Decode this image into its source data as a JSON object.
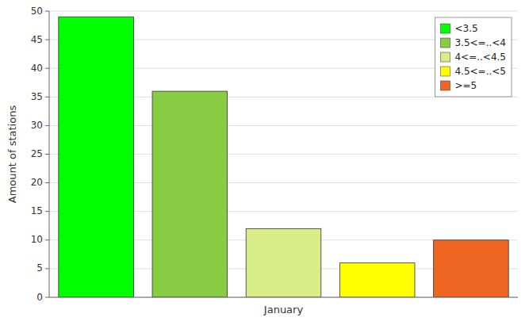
{
  "chart_data": {
    "type": "bar",
    "categories": [
      "January"
    ],
    "series": [
      {
        "name": "<3.5",
        "color": "#00ff00",
        "values": [
          49
        ]
      },
      {
        "name": "3.5<=..<4",
        "color": "#88cc44",
        "values": [
          36
        ]
      },
      {
        "name": "4<=..<4.5",
        "color": "#d8ed88",
        "values": [
          12
        ]
      },
      {
        "name": "4.5<=..<5",
        "color": "#ffff00",
        "values": [
          6
        ]
      },
      {
        "name": ">=5",
        "color": "#ee6622",
        "values": [
          10
        ]
      }
    ],
    "ylabel": "Amount of stations",
    "ylim": [
      0,
      50
    ],
    "yticks": [
      0,
      5,
      10,
      15,
      20,
      25,
      30,
      35,
      40,
      45,
      50
    ],
    "grid": true,
    "legend": "upper right"
  }
}
